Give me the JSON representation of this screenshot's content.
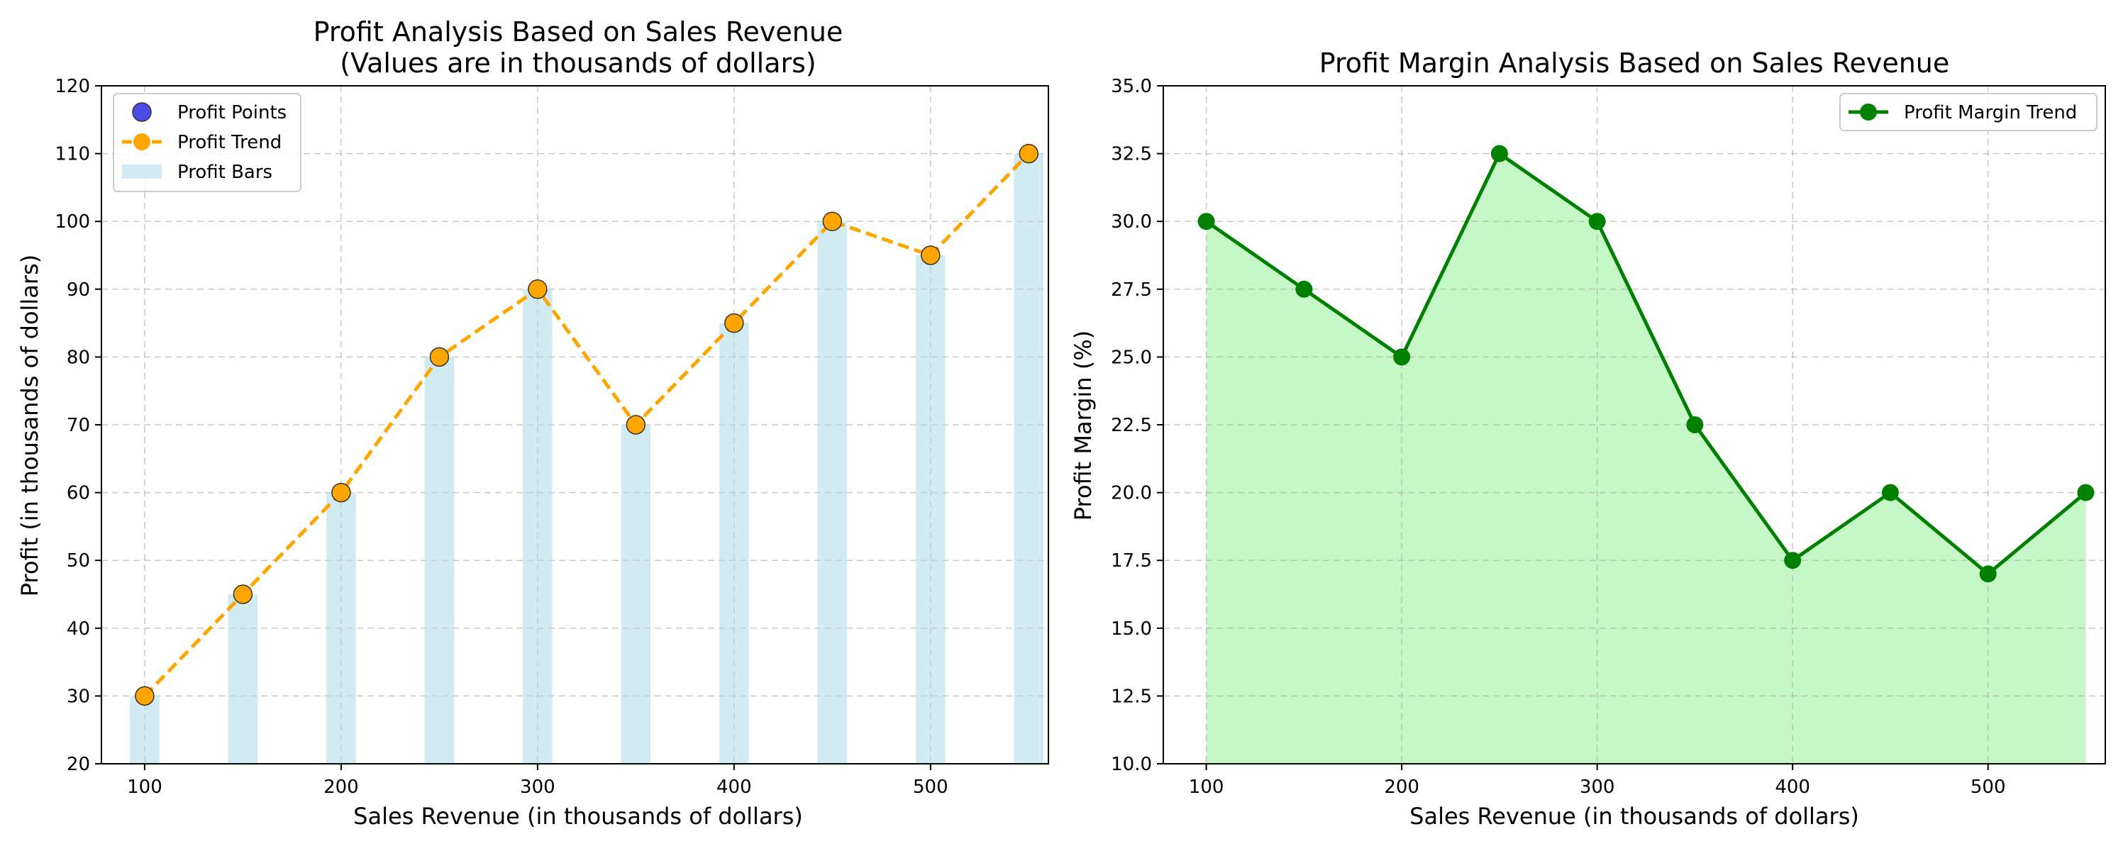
{
  "chart_data": [
    {
      "type": "bar",
      "title": "Profit Analysis Based on Sales Revenue",
      "subtitle": "(Values are in thousands of dollars)",
      "xlabel": "Sales Revenue (in thousands of dollars)",
      "ylabel": "Profit (in thousands of dollars)",
      "x": [
        100,
        150,
        200,
        250,
        300,
        350,
        400,
        450,
        500,
        550
      ],
      "series": [
        {
          "name": "Profit Points",
          "kind": "scatter",
          "values": [
            30,
            45,
            60,
            80,
            90,
            70,
            85,
            100,
            95,
            110
          ],
          "color": "#4b4be6"
        },
        {
          "name": "Profit Trend",
          "kind": "line",
          "values": [
            30,
            45,
            60,
            80,
            90,
            70,
            85,
            100,
            95,
            110
          ],
          "color": "#ffa500"
        },
        {
          "name": "Profit Bars",
          "kind": "bar",
          "values": [
            30,
            45,
            60,
            80,
            90,
            70,
            85,
            100,
            95,
            110
          ],
          "color": "#add8e6"
        }
      ],
      "xticks": [
        100,
        200,
        300,
        400,
        500
      ],
      "yticks": [
        20,
        30,
        40,
        50,
        60,
        70,
        80,
        90,
        100,
        110,
        120
      ],
      "xlim": [
        78,
        560
      ],
      "ylim": [
        20,
        120
      ],
      "grid": true,
      "legend": "upper left"
    },
    {
      "type": "area",
      "title": "Profit Margin Analysis Based on Sales Revenue",
      "xlabel": "Sales Revenue (in thousands of dollars)",
      "ylabel": "Profit Margin (%)",
      "x": [
        100,
        150,
        200,
        250,
        300,
        350,
        400,
        450,
        500,
        550
      ],
      "series": [
        {
          "name": "Profit Margin Trend",
          "values": [
            30.0,
            27.5,
            25.0,
            32.5,
            30.0,
            22.5,
            17.5,
            20.0,
            17.0,
            20.0
          ],
          "color": "#008000",
          "fill": "#c6f7c6"
        }
      ],
      "xticks": [
        100,
        200,
        300,
        400,
        500
      ],
      "yticks": [
        "10.0",
        "12.5",
        "15.0",
        "17.5",
        "20.0",
        "22.5",
        "25.0",
        "27.5",
        "30.0",
        "32.5",
        "35.0"
      ],
      "xlim": [
        78,
        560
      ],
      "ylim": [
        10,
        35
      ],
      "grid": true,
      "legend": "upper right"
    }
  ]
}
